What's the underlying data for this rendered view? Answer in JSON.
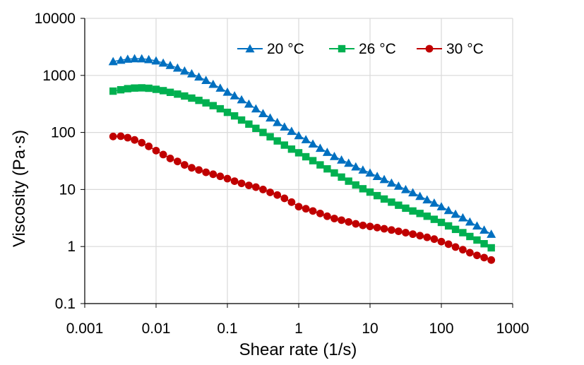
{
  "chart_data": {
    "type": "scatter",
    "title": "",
    "xlabel": "Shear rate (1/s)",
    "ylabel": "Viscosity (Pa·s)",
    "xscale": "log",
    "yscale": "log",
    "xlim": [
      0.001,
      1000
    ],
    "ylim": [
      0.1,
      10000
    ],
    "x_tick_labels": [
      "0.001",
      "0.01",
      "0.1",
      "1",
      "10",
      "100",
      "1000"
    ],
    "y_tick_labels": [
      "0.1",
      "1",
      "10",
      "100",
      "1000",
      "10000"
    ],
    "grid": true,
    "legend_position": "top-right",
    "series": [
      {
        "name": "20 °C",
        "color": "#0070C0",
        "marker": "triangle",
        "x": [
          0.0025,
          0.0032,
          0.004,
          0.005,
          0.0063,
          0.0079,
          0.01,
          0.0126,
          0.0158,
          0.02,
          0.0251,
          0.0316,
          0.0398,
          0.0501,
          0.0631,
          0.0794,
          0.1,
          0.126,
          0.158,
          0.2,
          0.251,
          0.316,
          0.398,
          0.501,
          0.631,
          0.794,
          1.0,
          1.26,
          1.58,
          2.0,
          2.51,
          3.16,
          3.98,
          5.01,
          6.31,
          7.94,
          10.0,
          12.6,
          15.8,
          20.0,
          25.1,
          31.6,
          39.8,
          50.1,
          63.1,
          79.4,
          100,
          126,
          158,
          200,
          251,
          316,
          398,
          501
        ],
        "y": [
          1750,
          1850,
          1930,
          1970,
          1960,
          1900,
          1800,
          1650,
          1500,
          1350,
          1200,
          1070,
          940,
          820,
          700,
          600,
          510,
          440,
          375,
          315,
          260,
          215,
          180,
          150,
          125,
          105,
          88,
          75,
          63,
          53,
          45,
          38,
          33,
          29,
          25,
          22,
          19.5,
          17,
          15,
          13,
          11.5,
          10,
          8.8,
          7.6,
          6.6,
          5.8,
          5.0,
          4.3,
          3.7,
          3.2,
          2.7,
          2.3,
          1.95,
          1.65
        ]
      },
      {
        "name": "26 °C",
        "color": "#00B050",
        "marker": "square",
        "x": [
          0.0025,
          0.0032,
          0.004,
          0.005,
          0.0063,
          0.0079,
          0.01,
          0.0126,
          0.0158,
          0.02,
          0.0251,
          0.0316,
          0.0398,
          0.0501,
          0.0631,
          0.0794,
          0.1,
          0.126,
          0.158,
          0.2,
          0.251,
          0.316,
          0.398,
          0.501,
          0.631,
          0.794,
          1.0,
          1.26,
          1.58,
          2.0,
          2.51,
          3.16,
          3.98,
          5.01,
          6.31,
          7.94,
          10.0,
          12.6,
          15.8,
          20.0,
          25.1,
          31.6,
          39.8,
          50.1,
          63.1,
          79.4,
          100,
          126,
          158,
          200,
          251,
          316,
          398,
          501
        ],
        "y": [
          530,
          560,
          585,
          600,
          605,
          595,
          570,
          540,
          505,
          470,
          435,
          400,
          365,
          330,
          295,
          260,
          225,
          195,
          165,
          140,
          118,
          100,
          84,
          71,
          60,
          51,
          44,
          37.5,
          32,
          27,
          23,
          19.5,
          16.5,
          14,
          12,
          10.3,
          9.0,
          7.8,
          6.8,
          6.0,
          5.3,
          4.7,
          4.2,
          3.8,
          3.4,
          3.0,
          2.65,
          2.3,
          2.0,
          1.75,
          1.5,
          1.3,
          1.12,
          0.95
        ]
      },
      {
        "name": "30 °C",
        "color": "#C00000",
        "marker": "circle",
        "x": [
          0.0025,
          0.0032,
          0.004,
          0.005,
          0.0063,
          0.0079,
          0.01,
          0.0126,
          0.0158,
          0.02,
          0.0251,
          0.0316,
          0.0398,
          0.0501,
          0.0631,
          0.0794,
          0.1,
          0.126,
          0.158,
          0.2,
          0.251,
          0.316,
          0.398,
          0.501,
          0.631,
          0.794,
          1.0,
          1.26,
          1.58,
          2.0,
          2.51,
          3.16,
          3.98,
          5.01,
          6.31,
          7.94,
          10.0,
          12.6,
          15.8,
          20.0,
          25.1,
          31.6,
          39.8,
          50.1,
          63.1,
          79.4,
          100,
          126,
          158,
          200,
          251,
          316,
          398,
          501
        ],
        "y": [
          85,
          86,
          81,
          74,
          66,
          57,
          48,
          41,
          35,
          31,
          27,
          24,
          22,
          20,
          18.5,
          17,
          15.5,
          14,
          12.8,
          11.8,
          11,
          10,
          8.9,
          8.0,
          7.0,
          6.0,
          5.0,
          4.6,
          4.2,
          3.8,
          3.4,
          3.1,
          2.9,
          2.7,
          2.5,
          2.35,
          2.25,
          2.15,
          2.05,
          1.95,
          1.85,
          1.75,
          1.65,
          1.55,
          1.45,
          1.35,
          1.22,
          1.1,
          0.98,
          0.88,
          0.78,
          0.7,
          0.64,
          0.58
        ]
      }
    ]
  }
}
